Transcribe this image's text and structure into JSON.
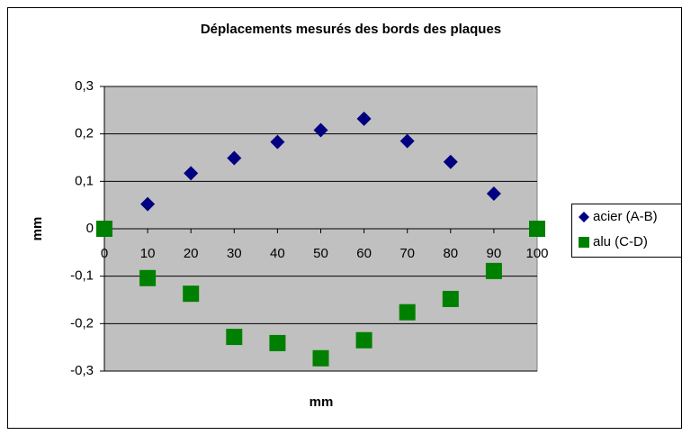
{
  "chart_data": {
    "type": "scatter",
    "title": "Déplacements mesurés des bords des plaques",
    "x_label": "mm",
    "y_label": "mm",
    "x": [
      0,
      10,
      20,
      30,
      40,
      50,
      60,
      70,
      80,
      90,
      100
    ],
    "series": [
      {
        "name": "acier (A-B)",
        "color": "#000080",
        "marker": "diamond",
        "values": [
          0,
          0.052,
          0.117,
          0.149,
          0.183,
          0.208,
          0.232,
          0.185,
          0.141,
          0.074,
          0
        ]
      },
      {
        "name": "alu (C-D)",
        "color": "#008000",
        "marker": "square",
        "values": [
          0,
          -0.104,
          -0.137,
          -0.228,
          -0.241,
          -0.273,
          -0.235,
          -0.176,
          -0.148,
          -0.089,
          0
        ]
      }
    ],
    "xlim": [
      0,
      100
    ],
    "xticks": [
      0,
      10,
      20,
      30,
      40,
      50,
      60,
      70,
      80,
      90,
      100
    ],
    "ylim": [
      -0.3,
      0.3
    ],
    "yticks": [
      {
        "value": -0.3,
        "label": "-0,3"
      },
      {
        "value": -0.2,
        "label": "-0,2"
      },
      {
        "value": -0.1,
        "label": "-0,1"
      },
      0,
      {
        "value": 0.1,
        "label": "0,1"
      },
      {
        "value": 0.2,
        "label": "0,2"
      },
      {
        "value": 0.3,
        "label": "0,3"
      }
    ],
    "grid": true,
    "legend": "right"
  }
}
